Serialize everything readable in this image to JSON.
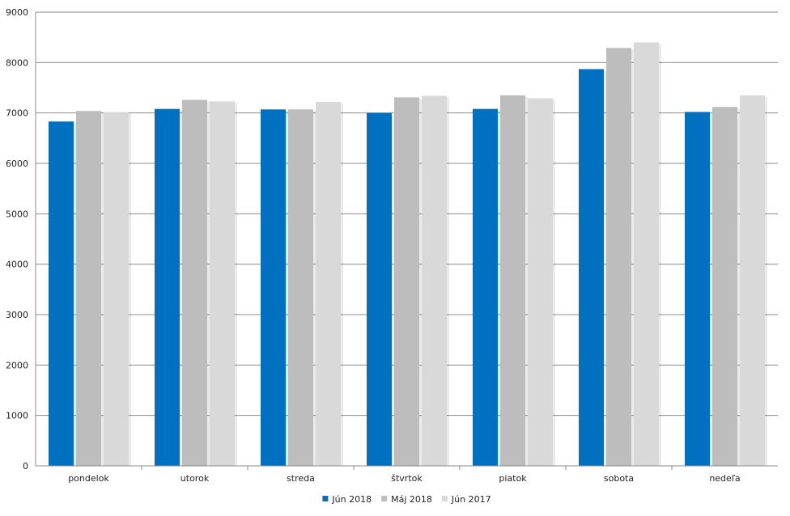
{
  "chart_data": {
    "type": "bar",
    "categories": [
      "pondelok",
      "utorok",
      "streda",
      "štvrtok",
      "piatok",
      "sobota",
      "nedeľa"
    ],
    "series": [
      {
        "name": "Jún 2018",
        "color": "#0070C0",
        "values": [
          6830,
          7080,
          7070,
          7000,
          7080,
          7870,
          7020
        ]
      },
      {
        "name": "Máj 2018",
        "color": "#BDBDBD",
        "values": [
          7040,
          7260,
          7070,
          7310,
          7350,
          8290,
          7120
        ]
      },
      {
        "name": "Jún 2017",
        "color": "#D9D9D9",
        "values": [
          7020,
          7230,
          7220,
          7340,
          7290,
          8400,
          7350
        ]
      }
    ],
    "ylim": [
      0,
      9000
    ],
    "yticks": [
      "0",
      "1000",
      "2000",
      "3000",
      "4000",
      "5000",
      "6000",
      "7000",
      "8000",
      "9000"
    ],
    "grid": true,
    "legend_position": "bottom-center"
  }
}
